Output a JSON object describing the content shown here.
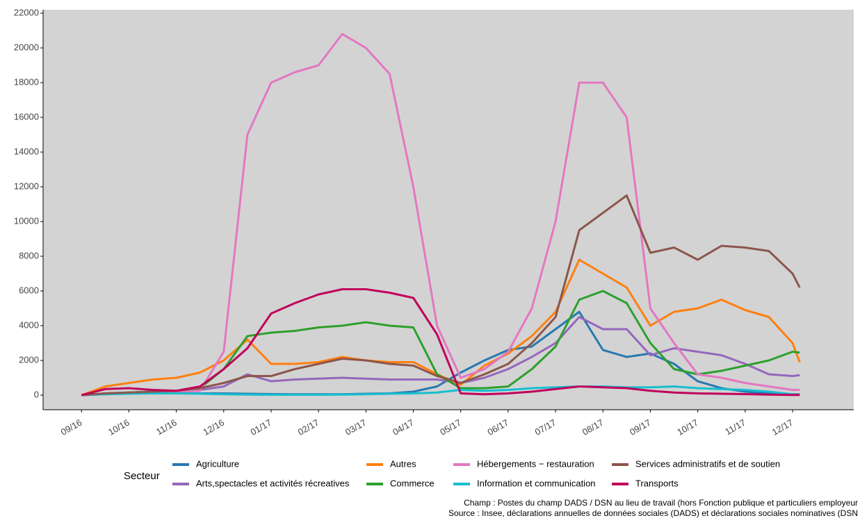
{
  "chart_data": {
    "type": "line",
    "legend_title": "Secteur",
    "notes": [
      "Champ : Postes du champ DADS / DSN au lieu de travail (hors Fonction publique et particuliers employeur",
      "Source : Insee, déclarations annuelles de données sociales (DADS) et déclarations sociales nominatives (DSN"
    ],
    "x": [
      0,
      0.5,
      1,
      1.5,
      2,
      2.5,
      3,
      3.5,
      4,
      4.5,
      5,
      5.5,
      6,
      6.5,
      7,
      7.5,
      8,
      8.5,
      9,
      9.5,
      10,
      10.5,
      11,
      11.5,
      12,
      12.5,
      13,
      13.5,
      14,
      14.5,
      15,
      15.15
    ],
    "xlim": [
      -0.81,
      16.29
    ],
    "xticks": [
      {
        "value": 0,
        "label": "09/16"
      },
      {
        "value": 1,
        "label": "10/16"
      },
      {
        "value": 2,
        "label": "11/16"
      },
      {
        "value": 3,
        "label": "12/16"
      },
      {
        "value": 4,
        "label": "01/17"
      },
      {
        "value": 5,
        "label": "02/17"
      },
      {
        "value": 6,
        "label": "03/17"
      },
      {
        "value": 7,
        "label": "04/17"
      },
      {
        "value": 8,
        "label": "05/17"
      },
      {
        "value": 9,
        "label": "06/17"
      },
      {
        "value": 10,
        "label": "07/17"
      },
      {
        "value": 11,
        "label": "08/17"
      },
      {
        "value": 12,
        "label": "09/17"
      },
      {
        "value": 13,
        "label": "10/17"
      },
      {
        "value": 14,
        "label": "11/17"
      },
      {
        "value": 15,
        "label": "12/17"
      }
    ],
    "ylim": [
      -840,
      22200
    ],
    "yticks": [
      0,
      2000,
      4000,
      6000,
      8000,
      10000,
      12000,
      14000,
      16000,
      18000,
      20000,
      22000
    ],
    "series": [
      {
        "name": "Agriculture",
        "color": "#2878b0",
        "values": [
          0,
          80,
          100,
          100,
          100,
          100,
          100,
          80,
          60,
          50,
          50,
          50,
          80,
          100,
          200,
          500,
          1300,
          2000,
          2600,
          2800,
          3800,
          4800,
          2600,
          2200,
          2400,
          1800,
          800,
          400,
          200,
          100,
          50,
          50
        ]
      },
      {
        "name": "Arts,spectacles et activités récreatives",
        "color": "#9467bd",
        "values": [
          0,
          100,
          150,
          200,
          250,
          300,
          500,
          1200,
          800,
          900,
          950,
          1000,
          950,
          900,
          900,
          900,
          700,
          1000,
          1500,
          2200,
          3000,
          4500,
          3800,
          3800,
          2300,
          2700,
          2500,
          2300,
          1800,
          1200,
          1100,
          1150
        ]
      },
      {
        "name": "Autres",
        "color": "#ff7f0e",
        "values": [
          0,
          500,
          700,
          900,
          1000,
          1300,
          2000,
          3200,
          1800,
          1800,
          1900,
          2200,
          2000,
          1900,
          1900,
          1200,
          600,
          1700,
          2400,
          3400,
          4800,
          7800,
          7000,
          6200,
          4000,
          4800,
          5000,
          5500,
          4900,
          4500,
          3000,
          1900
        ]
      },
      {
        "name": "Commerce",
        "color": "#2ca02c",
        "values": [
          0,
          100,
          150,
          200,
          250,
          400,
          1500,
          3400,
          3600,
          3700,
          3900,
          4000,
          4200,
          4000,
          3900,
          1200,
          400,
          400,
          500,
          1500,
          2800,
          5500,
          6000,
          5300,
          3000,
          1500,
          1200,
          1400,
          1700,
          2000,
          2500,
          2450
        ]
      },
      {
        "name": "Hébergements − restauration",
        "color": "#e377c2",
        "values": [
          0,
          50,
          100,
          150,
          200,
          250,
          2500,
          15000,
          18000,
          18600,
          19000,
          20800,
          20000,
          18500,
          12000,
          4000,
          1000,
          1500,
          2500,
          5000,
          10000,
          18000,
          18000,
          16000,
          5000,
          3000,
          1200,
          1000,
          700,
          500,
          300,
          300
        ]
      },
      {
        "name": "Information et communication",
        "color": "#17becf",
        "values": [
          0,
          50,
          80,
          100,
          100,
          80,
          50,
          30,
          20,
          20,
          20,
          30,
          50,
          80,
          100,
          150,
          300,
          250,
          300,
          400,
          450,
          500,
          500,
          450,
          450,
          500,
          400,
          350,
          300,
          200,
          50,
          30
        ]
      },
      {
        "name": "Services administratifs et de soutien",
        "color": "#8c564b",
        "values": [
          0,
          100,
          150,
          200,
          250,
          400,
          700,
          1100,
          1100,
          1500,
          1800,
          2100,
          2000,
          1800,
          1700,
          1100,
          700,
          1200,
          1800,
          3000,
          4500,
          9500,
          10500,
          11500,
          8200,
          8500,
          7800,
          8600,
          8500,
          8300,
          7000,
          6200
        ]
      },
      {
        "name": "Transports",
        "color": "#c0005a",
        "values": [
          0,
          350,
          400,
          300,
          250,
          500,
          1500,
          2700,
          4700,
          5300,
          5800,
          6100,
          6100,
          5900,
          5600,
          3500,
          100,
          50,
          100,
          200,
          350,
          500,
          450,
          400,
          250,
          150,
          100,
          80,
          60,
          30,
          10,
          10
        ]
      }
    ]
  }
}
